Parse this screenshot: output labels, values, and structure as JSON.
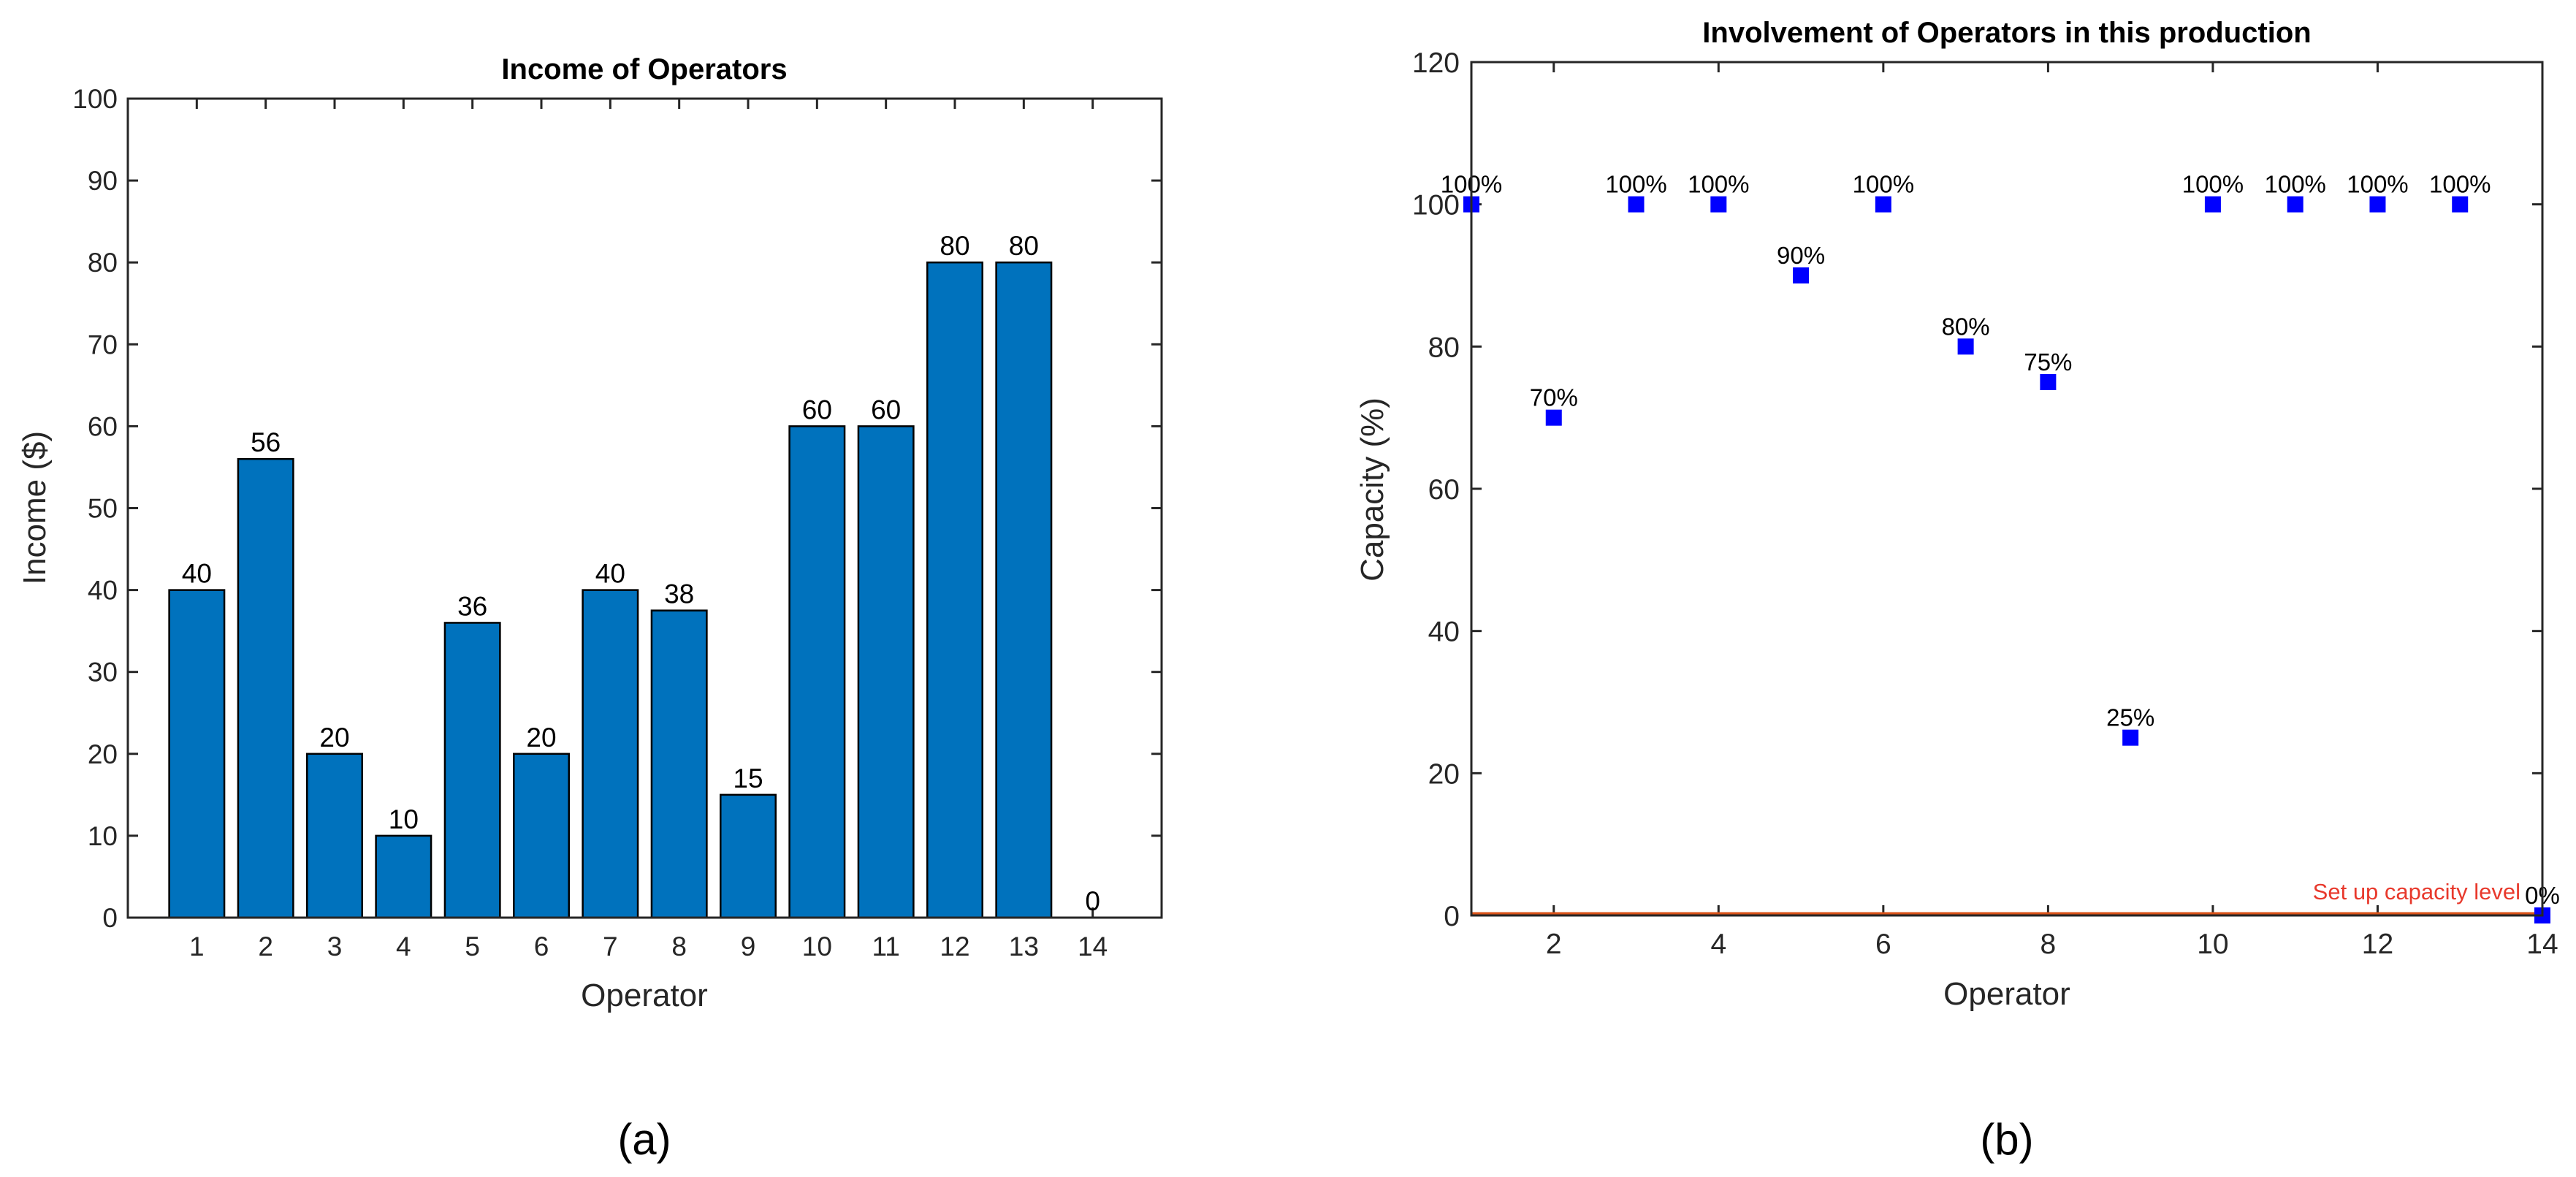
{
  "chart_data": [
    {
      "type": "bar",
      "title": "Income of Operators",
      "xlabel": "Operator",
      "ylabel": "Income ($)",
      "categories": [
        "1",
        "2",
        "3",
        "4",
        "5",
        "6",
        "7",
        "8",
        "9",
        "10",
        "11",
        "12",
        "13",
        "14"
      ],
      "values": [
        40,
        56,
        20,
        10,
        36,
        20,
        40,
        37.5,
        15,
        60,
        60,
        80,
        80,
        0
      ],
      "data_labels": [
        "40",
        "56",
        "20",
        "10",
        "36",
        "20",
        "40",
        "38",
        "15",
        "60",
        "60",
        "80",
        "80",
        "0"
      ],
      "xlim": [
        0,
        15
      ],
      "ylim": [
        0,
        100
      ],
      "yticks": [
        0,
        10,
        20,
        30,
        40,
        50,
        60,
        70,
        80,
        90,
        100
      ],
      "xticks": [
        1,
        2,
        3,
        4,
        5,
        6,
        7,
        8,
        9,
        10,
        11,
        12,
        13,
        14
      ],
      "bar_color": "#0072bd",
      "grid": false,
      "panel_label": "(a)"
    },
    {
      "type": "scatter",
      "title": "Involvement  of Operators in this production",
      "xlabel": "Operator",
      "ylabel": "Capacity (%)",
      "x": [
        1,
        2,
        3,
        4,
        5,
        6,
        7,
        8,
        9,
        10,
        11,
        12,
        13,
        14
      ],
      "y": [
        100,
        70,
        100,
        100,
        90,
        100,
        80,
        75,
        25,
        100,
        100,
        100,
        100,
        0
      ],
      "data_labels": [
        "100%",
        "70%",
        "100%",
        "100%",
        "90%",
        "100%",
        "80%",
        "75%",
        "25%",
        "100%",
        "100%",
        "100%",
        "100%",
        "0%"
      ],
      "xlim": [
        1,
        14
      ],
      "ylim": [
        0,
        120
      ],
      "xticks": [
        2,
        4,
        6,
        8,
        10,
        12,
        14
      ],
      "yticks": [
        0,
        20,
        40,
        60,
        80,
        100,
        120
      ],
      "marker_color": "#0000ff",
      "reference_line": {
        "y": 0,
        "label": "Set up capacity level",
        "color": "#d95319"
      },
      "grid": false,
      "panel_label": "(b)"
    }
  ]
}
